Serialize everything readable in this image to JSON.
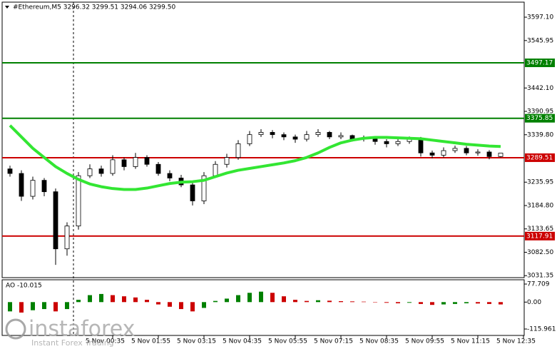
{
  "chart_data": {
    "type": "candlestick",
    "title": "#Ethereum,M5  3296.32 3299.51 3294.06 3299.50",
    "categories": [
      null,
      null,
      null,
      null,
      null,
      null,
      null,
      null,
      null,
      "5 Nov 00:35",
      null,
      null,
      null,
      "5 Nov 01:55",
      null,
      null,
      null,
      "5 Nov 03:15",
      null,
      null,
      null,
      "5 Nov 04:35",
      null,
      null,
      null,
      "5 Nov 05:55",
      null,
      null,
      null,
      "5 Nov 07:15",
      null,
      null,
      null,
      "5 Nov 08:35",
      null,
      null,
      null,
      "5 Nov 09:55",
      null,
      null,
      null,
      "5 Nov 11:15",
      null,
      null,
      null,
      "5 Nov 12:35"
    ],
    "open": [
      3265,
      3255,
      3205,
      3240,
      3215,
      3090,
      3140,
      3250,
      3265,
      3255,
      3285,
      3270,
      3290,
      3275,
      3255,
      3245,
      3230,
      3195,
      3250,
      3275,
      3290,
      3320,
      3340,
      3345,
      3340,
      3335,
      3330,
      3340,
      3345,
      3335,
      3338,
      3330,
      3332,
      3325,
      3320,
      3325,
      3330,
      3300,
      3295,
      3305,
      3310,
      3300,
      3302,
      3292,
      null,
      null
    ],
    "high": [
      3272,
      3262,
      3248,
      3245,
      3222,
      3148,
      3258,
      3275,
      3272,
      3295,
      3290,
      3300,
      3295,
      3280,
      3262,
      3252,
      3238,
      3258,
      3282,
      3298,
      3328,
      3348,
      3352,
      3350,
      3345,
      3340,
      3348,
      3352,
      3348,
      3345,
      3340,
      3338,
      3335,
      3330,
      3332,
      3336,
      3335,
      3305,
      3312,
      3316,
      3315,
      3308,
      3306,
      3299.51,
      null,
      null
    ],
    "low": [
      3248,
      3195,
      3198,
      3205,
      3055,
      3075,
      3132,
      3245,
      3248,
      3250,
      3262,
      3265,
      3270,
      3250,
      3238,
      3225,
      3185,
      3188,
      3245,
      3268,
      3285,
      3315,
      3335,
      3332,
      3328,
      3322,
      3325,
      3335,
      3330,
      3330,
      3325,
      3325,
      3318,
      3312,
      3315,
      3320,
      3292,
      3288,
      3290,
      3300,
      3295,
      3294,
      3286,
      3290,
      null,
      null
    ],
    "close": [
      3255,
      3205,
      3240,
      3215,
      3090,
      3140,
      3250,
      3265,
      3255,
      3285,
      3270,
      3290,
      3275,
      3255,
      3245,
      3230,
      3195,
      3250,
      3275,
      3290,
      3320,
      3340,
      3345,
      3340,
      3335,
      3330,
      3340,
      3345,
      3335,
      3338,
      3330,
      3332,
      3325,
      3320,
      3325,
      3330,
      3300,
      3295,
      3305,
      3310,
      3300,
      3302,
      3292,
      3299.5,
      null,
      null
    ],
    "up_color": "#ffffff",
    "down_color": "#000000",
    "moving_average": {
      "color": "#33e633",
      "values": [
        3360,
        3335,
        3310,
        3290,
        3270,
        3255,
        3242,
        3232,
        3226,
        3222,
        3220,
        3220,
        3223,
        3228,
        3233,
        3236,
        3237,
        3240,
        3248,
        3256,
        3262,
        3266,
        3270,
        3274,
        3278,
        3283,
        3290,
        3300,
        3312,
        3322,
        3328,
        3332,
        3334,
        3334,
        3333,
        3332,
        3331,
        3328,
        3325,
        3322,
        3319,
        3317,
        3315,
        3314,
        null,
        null
      ]
    },
    "levels": [
      {
        "value": 3497.17,
        "color": "#008000"
      },
      {
        "value": 3375.85,
        "color": "#008000"
      },
      {
        "value": 3289.51,
        "color": "#cc0000"
      },
      {
        "value": 3117.91,
        "color": "#cc0000"
      }
    ],
    "ylim": [
      3027,
      3630
    ],
    "yticks": [
      {
        "value": 3597.1,
        "label": "3597.10"
      },
      3545.95,
      {
        "value": 3442.1,
        "label": "3442.10"
      },
      3390.95,
      {
        "value": 3339.8,
        "label": "3339.80"
      },
      3235.95,
      {
        "value": 3184.8,
        "label": "3184.80"
      },
      3133.65,
      {
        "value": 3082.5,
        "label": "3082.50"
      },
      3031.35
    ],
    "indicator": {
      "label": "AO -10.015",
      "up_color": "#008000",
      "down_color": "#cc0000",
      "values": [
        -40,
        -45,
        -35,
        -30,
        -40,
        -30,
        10,
        30,
        35,
        30,
        25,
        20,
        10,
        -10,
        -20,
        -30,
        -40,
        -25,
        5,
        15,
        30,
        40,
        45,
        40,
        25,
        10,
        5,
        8,
        6,
        4,
        3,
        2,
        0,
        -3,
        -5,
        -3,
        -8,
        -12,
        -10,
        -8,
        -5,
        -6,
        -8,
        -10.015,
        null,
        null
      ],
      "ylim": [
        -143.6,
        96.2
      ],
      "yticks": [
        77.709,
        {
          "value": 0,
          "label": "0.00"
        },
        -115.961
      ]
    }
  },
  "watermark": {
    "brand": "instaforex",
    "tagline": "Instant Forex Trading"
  }
}
